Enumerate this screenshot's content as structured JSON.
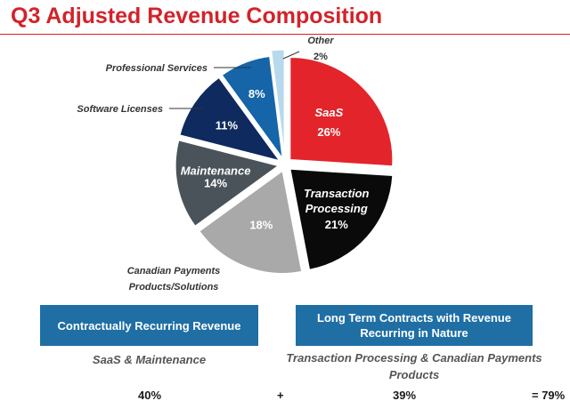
{
  "title": "Q3 Adjusted Revenue Composition",
  "chart_data": {
    "type": "pie",
    "title": "Q3 Adjusted Revenue Composition",
    "start_angle_deg": 0,
    "direction": "clockwise",
    "exploded": true,
    "slices": [
      {
        "label": "SaaS",
        "value": 26,
        "pct_text": "26%",
        "color": "#e3242b",
        "label_color": "#ffffff"
      },
      {
        "label": "Transaction Processing",
        "value": 21,
        "pct_text": "21%",
        "color": "#0a0a0a",
        "label_color": "#ffffff"
      },
      {
        "label": "Canadian Payments Products/Solutions",
        "value": 18,
        "pct_text": "18%",
        "color": "#a9a9a9",
        "label_color": "#ffffff"
      },
      {
        "label": "Maintenance",
        "value": 14,
        "pct_text": "14%",
        "color": "#4a5359",
        "label_color": "#ffffff"
      },
      {
        "label": "Software Licenses",
        "value": 11,
        "pct_text": "11%",
        "color": "#0e2a5e",
        "label_color": "#ffffff"
      },
      {
        "label": "Professional Services",
        "value": 8,
        "pct_text": "8%",
        "color": "#1565a8",
        "label_color": "#ffffff"
      },
      {
        "label": "Other",
        "value": 2,
        "pct_text": "2%",
        "color": "#b8d9ec",
        "label_color": "#333333"
      }
    ]
  },
  "groups": [
    {
      "label": "Contractually Recurring Revenue",
      "subtitle": "SaaS & Maintenance",
      "total": "40%"
    },
    {
      "label": "Long Term Contracts with Revenue Recurring in Nature",
      "subtitle": "Transaction Processing & Canadian Payments Products",
      "total": "39%"
    }
  ],
  "plus_sign": "+",
  "grand_total": "= 79%"
}
